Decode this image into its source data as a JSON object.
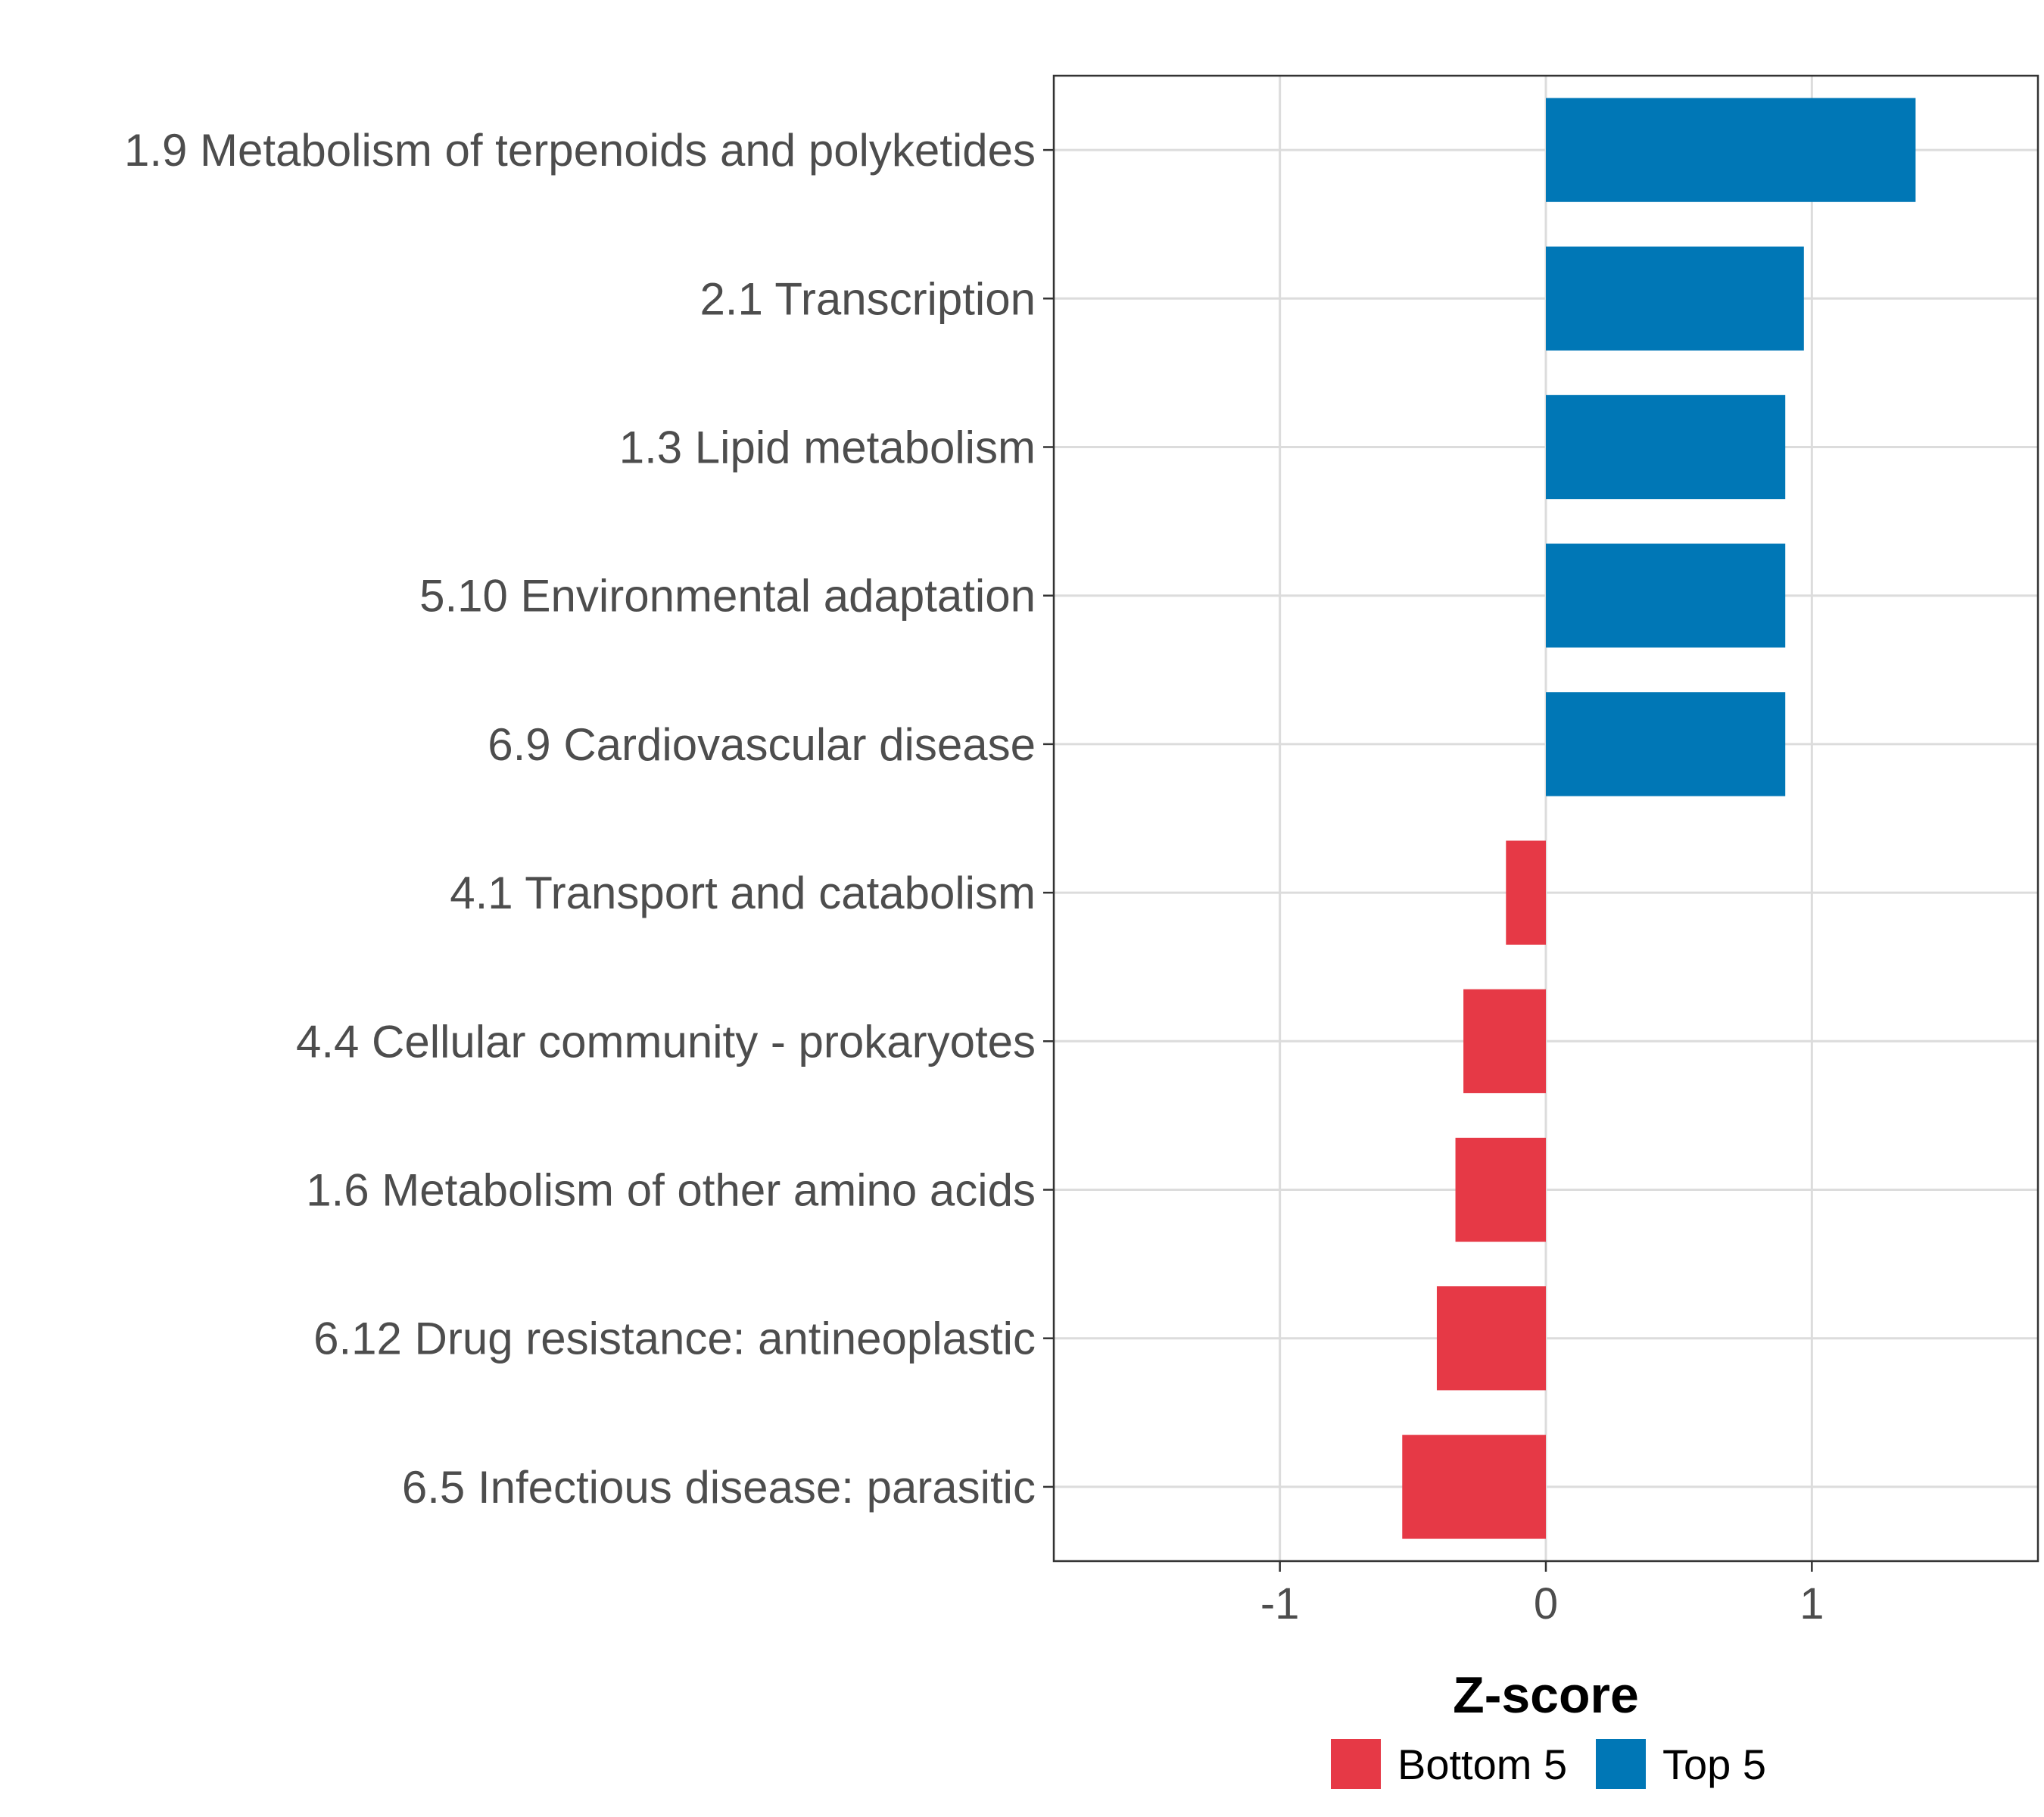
{
  "chart_data": {
    "type": "bar",
    "orientation": "horizontal",
    "xlabel": "Z-score",
    "ylabel": "",
    "xlim": [
      -1.85,
      1.85
    ],
    "xticks": [
      -1,
      0,
      1
    ],
    "xtick_labels": [
      "-1",
      "0",
      "1"
    ],
    "grid": true,
    "legend_position": "bottom",
    "categories": [
      "1.9 Metabolism of terpenoids and polyketides",
      "2.1 Transcription",
      "1.3 Lipid metabolism",
      "5.10 Environmental adaptation",
      "6.9 Cardiovascular disease",
      "4.1 Transport and catabolism",
      "4.4 Cellular community - prokaryotes",
      "1.6 Metabolism of other amino acids",
      "6.12 Drug resistance: antineoplastic",
      "6.5 Infectious disease: parasitic"
    ],
    "values": [
      1.39,
      0.97,
      0.9,
      0.9,
      0.9,
      -0.15,
      -0.31,
      -0.34,
      -0.41,
      -0.54
    ],
    "groups": [
      "Top 5",
      "Top 5",
      "Top 5",
      "Top 5",
      "Top 5",
      "Bottom 5",
      "Bottom 5",
      "Bottom 5",
      "Bottom 5",
      "Bottom 5"
    ],
    "legend": [
      {
        "name": "Bottom 5",
        "color": "#E63946"
      },
      {
        "name": "Top 5",
        "color": "#0077B6"
      }
    ]
  }
}
